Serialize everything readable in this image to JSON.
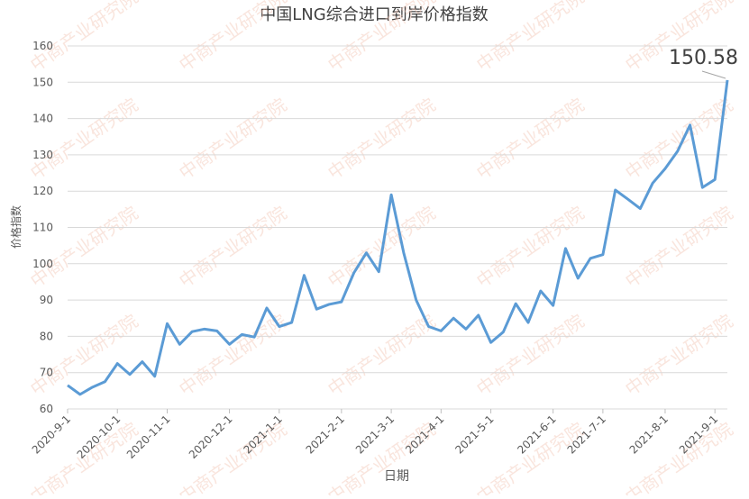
{
  "chart_data": {
    "type": "line",
    "title": "中国LNG综合进口到岸价格指数",
    "y_label": "价格指数",
    "x_label": "日期",
    "watermark": "中商产业研究院",
    "categories": [
      "2020-9-1",
      null,
      null,
      null,
      "2020-10-1",
      null,
      null,
      null,
      "2020-11-1",
      null,
      null,
      null,
      null,
      "2020-12-1",
      null,
      null,
      null,
      "2021-1-1",
      null,
      null,
      null,
      null,
      "2021-2-1",
      null,
      null,
      null,
      "2021-3-1",
      null,
      null,
      null,
      "2021-4-1",
      null,
      null,
      null,
      "2021-5-1",
      null,
      null,
      null,
      null,
      "2021-6-1",
      null,
      null,
      null,
      "2021-7-1",
      null,
      null,
      null,
      null,
      "2021-8-1",
      null,
      null,
      null,
      "2021-9-1",
      null
    ],
    "series": [
      {
        "name": "价格指数",
        "color": "#5b9bd5",
        "values": [
          66.5,
          64,
          66,
          67.5,
          72.5,
          69.5,
          73,
          69,
          83.5,
          77.8,
          81.3,
          82,
          81.5,
          77.8,
          80.5,
          79.8,
          87.8,
          82.7,
          83.8,
          96.8,
          87.5,
          88.8,
          89.5,
          97.5,
          103,
          97.8,
          119,
          103,
          90,
          82.7,
          81.5,
          85,
          82,
          85.8,
          78.3,
          81.2,
          89,
          83.8,
          92.5,
          88.5,
          104.2,
          96,
          101.5,
          102.5,
          120.3,
          117.8,
          115.2,
          122.2,
          126.2,
          131,
          138.2,
          121,
          123.2,
          150.58
        ]
      }
    ],
    "ylim": [
      60,
      160
    ],
    "yticks": [
      60,
      70,
      80,
      90,
      100,
      110,
      120,
      130,
      140,
      150,
      160
    ],
    "grid": true
  }
}
